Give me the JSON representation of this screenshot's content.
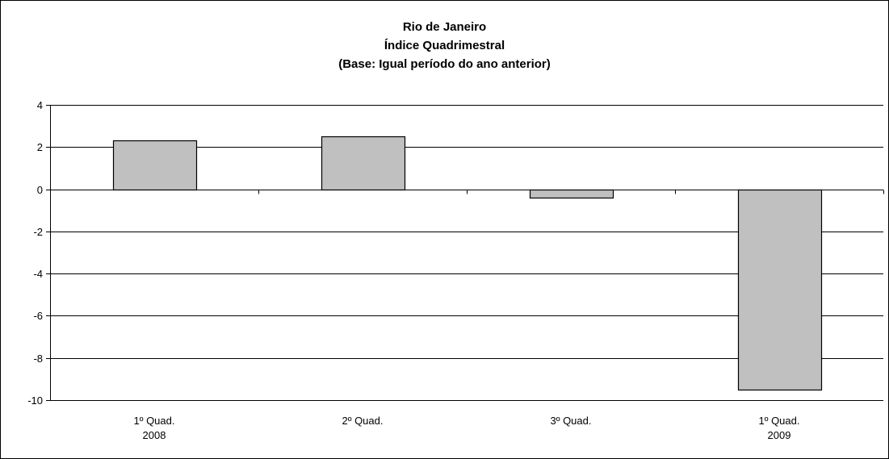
{
  "chart_data": {
    "type": "bar",
    "title_lines": [
      "Rio de Janeiro",
      "Índice Quadrimestral",
      "(Base: Igual período do ano anterior)"
    ],
    "categories": [
      [
        "1º Quad.",
        "2008"
      ],
      [
        "2º Quad.",
        ""
      ],
      [
        "3º Quad.",
        ""
      ],
      [
        "1º Quad.",
        "2009"
      ]
    ],
    "values": [
      2.3,
      2.5,
      -0.4,
      -9.5
    ],
    "ylim": [
      -10,
      4
    ],
    "yticks": [
      4,
      2,
      0,
      -2,
      -4,
      -6,
      -8,
      -10
    ],
    "grid": true,
    "legend": "none",
    "colors": {
      "bar_fill": "#c0c0c0",
      "bar_stroke": "#000000",
      "grid": "#000000"
    }
  }
}
